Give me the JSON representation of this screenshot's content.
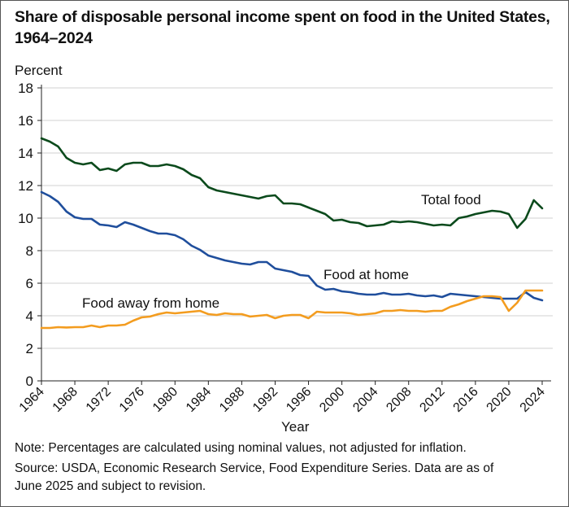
{
  "chart_data": {
    "type": "line",
    "title": "Share of disposable personal income spent on food in the United States, 1964–2024",
    "ylabel": "Percent",
    "xlabel": "Year",
    "ylim": [
      0,
      18
    ],
    "xlim": [
      1964,
      2025
    ],
    "yticks": [
      0,
      2,
      4,
      6,
      8,
      10,
      12,
      14,
      16,
      18
    ],
    "xticks": [
      1964,
      1968,
      1972,
      1976,
      1980,
      1984,
      1988,
      1992,
      1996,
      2000,
      2004,
      2008,
      2012,
      2016,
      2020,
      2024
    ],
    "grid": "horizontal",
    "x_start": 1964,
    "series": [
      {
        "name": "Total food",
        "color": "#0b4a1c",
        "values": [
          14.9,
          14.7,
          14.4,
          13.7,
          13.4,
          13.3,
          13.4,
          12.95,
          13.05,
          12.9,
          13.3,
          13.4,
          13.4,
          13.2,
          13.2,
          13.3,
          13.2,
          13.0,
          12.65,
          12.45,
          11.9,
          11.7,
          11.6,
          11.5,
          11.4,
          11.3,
          11.2,
          11.35,
          11.4,
          10.9,
          10.9,
          10.85,
          10.65,
          10.45,
          10.25,
          9.85,
          9.9,
          9.75,
          9.7,
          9.5,
          9.55,
          9.6,
          9.8,
          9.75,
          9.8,
          9.75,
          9.65,
          9.55,
          9.6,
          9.55,
          10.0,
          10.1,
          10.25,
          10.35,
          10.45,
          10.4,
          10.25,
          9.4,
          9.95,
          11.1,
          10.6
        ]
      },
      {
        "name": "Food at home",
        "color": "#1f4e9c",
        "values": [
          11.6,
          11.35,
          11.0,
          10.4,
          10.05,
          9.95,
          9.95,
          9.6,
          9.55,
          9.45,
          9.75,
          9.6,
          9.4,
          9.2,
          9.05,
          9.05,
          8.95,
          8.7,
          8.3,
          8.05,
          7.7,
          7.55,
          7.4,
          7.3,
          7.2,
          7.15,
          7.3,
          7.3,
          6.9,
          6.8,
          6.7,
          6.5,
          6.45,
          5.85,
          5.6,
          5.65,
          5.5,
          5.45,
          5.35,
          5.3,
          5.3,
          5.4,
          5.3,
          5.3,
          5.35,
          5.25,
          5.2,
          5.25,
          5.15,
          5.35,
          5.3,
          5.25,
          5.2,
          5.15,
          5.1,
          5.05,
          5.05,
          5.05,
          5.45,
          5.1,
          4.95
        ]
      },
      {
        "name": "Food away from home",
        "color": "#f39c1f",
        "values": [
          3.25,
          3.25,
          3.3,
          3.28,
          3.3,
          3.3,
          3.4,
          3.3,
          3.4,
          3.4,
          3.45,
          3.7,
          3.9,
          3.95,
          4.1,
          4.2,
          4.15,
          4.2,
          4.25,
          4.3,
          4.1,
          4.05,
          4.15,
          4.1,
          4.1,
          3.95,
          4.0,
          4.05,
          3.85,
          4.0,
          4.05,
          4.05,
          3.85,
          4.25,
          4.2,
          4.2,
          4.2,
          4.15,
          4.05,
          4.1,
          4.15,
          4.3,
          4.3,
          4.35,
          4.3,
          4.3,
          4.25,
          4.3,
          4.3,
          4.55,
          4.7,
          4.9,
          5.05,
          5.2,
          5.2,
          5.15,
          4.3,
          4.8,
          5.55,
          5.55,
          5.55
        ]
      }
    ],
    "annotations": [
      {
        "series": "Total food",
        "text": "Total food"
      },
      {
        "series": "Food at home",
        "text": "Food at home"
      },
      {
        "series": "Food away from home",
        "text": "Food away from home"
      }
    ],
    "gridline_color": "#d9d9d9",
    "axis_color": "#222222"
  },
  "notes": {
    "note": "Note: Percentages are calculated using nominal values, not adjusted for inflation.",
    "source_line1": "Source: USDA, Economic Research Service, Food Expenditure Series. Data are as of",
    "source_line2": "June 2025 and subject to revision."
  }
}
